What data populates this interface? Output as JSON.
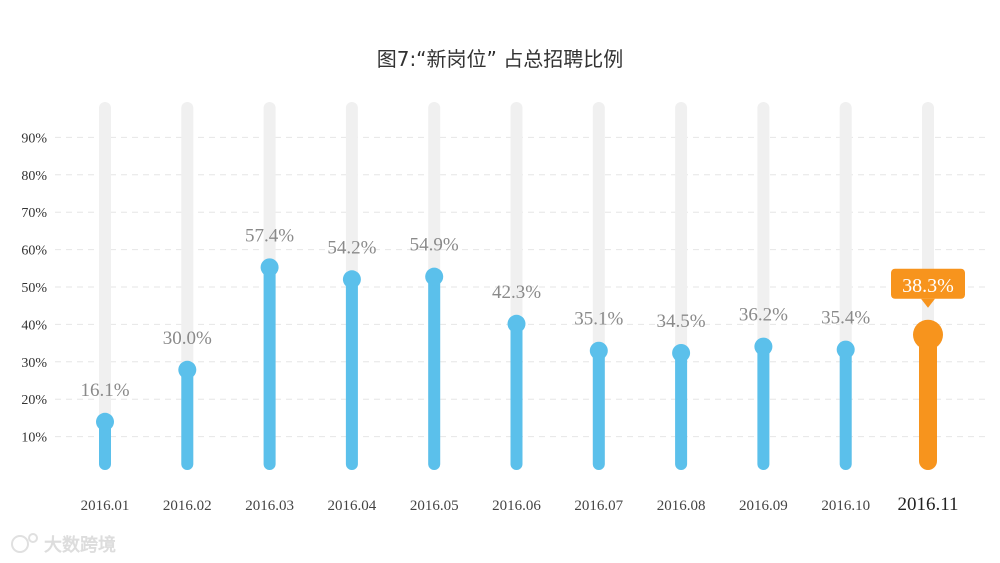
{
  "chart_data": {
    "type": "bar",
    "title": "图7:“新岗位” 占总招聘比例",
    "categories": [
      "2016.01",
      "2016.02",
      "2016.03",
      "2016.04",
      "2016.05",
      "2016.06",
      "2016.07",
      "2016.08",
      "2016.09",
      "2016.10",
      "2016.11"
    ],
    "values": [
      16.1,
      30.0,
      57.4,
      54.2,
      54.9,
      42.3,
      35.1,
      34.5,
      36.2,
      35.4,
      38.3
    ],
    "value_labels": [
      "16.1%",
      "30.0%",
      "57.4%",
      "54.2%",
      "54.9%",
      "42.3%",
      "35.1%",
      "34.5%",
      "36.2%",
      "35.4%",
      "38.3%"
    ],
    "yticks": [
      "10%",
      "20%",
      "30%",
      "40%",
      "50%",
      "60%",
      "70%",
      "80%",
      "90%"
    ],
    "ylim": [
      0,
      100
    ],
    "grid": true,
    "highlight_index": 10,
    "colors": {
      "bar": "#5bc0eb",
      "highlight": "#f7941d",
      "track": "#f0f0f0",
      "grid": "#e6e6e6"
    }
  },
  "watermark": {
    "text": "大数跨境"
  }
}
